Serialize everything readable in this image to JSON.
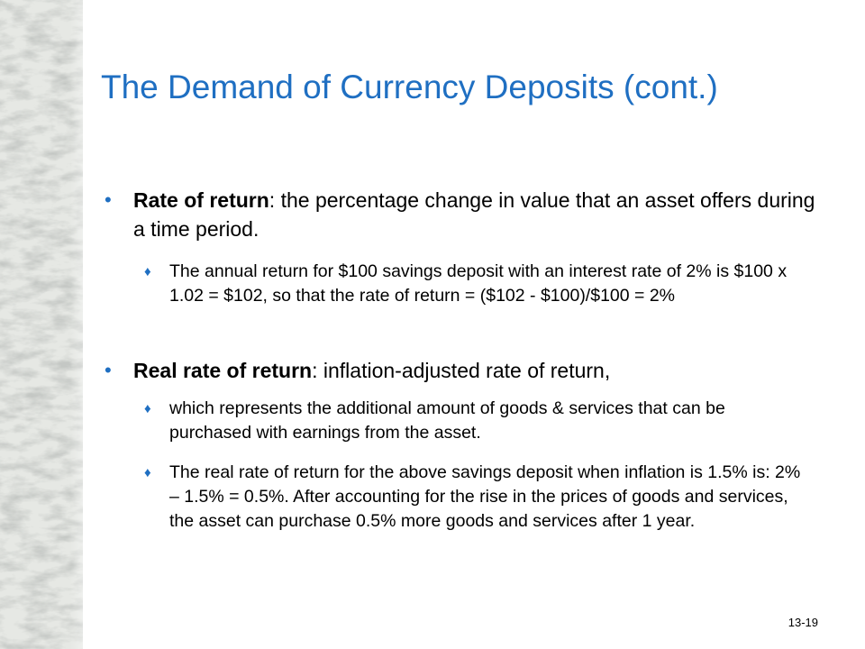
{
  "title": "The Demand of Currency Deposits (cont.)",
  "bullets": [
    {
      "term": "Rate of return",
      "text": ": the percentage change in value that an asset offers during a time period.",
      "subs": [
        "The annual return for $100 savings deposit with an interest rate of 2% is $100 x 1.02 = $102, so that the rate of return = ($102 - $100)/$100 = 2%"
      ]
    },
    {
      "term": "Real rate of return",
      "text": ": inflation-adjusted rate of return,",
      "subs": [
        "which represents the additional amount of goods & services that can be purchased with earnings from the asset.",
        "The real rate of return for the above savings deposit when inflation is 1.5% is:  2% – 1.5% = 0.5%.  After accounting for the rise in the prices of goods and services, the asset can purchase 0.5% more goods and services after 1 year."
      ]
    }
  ],
  "bullet_glyph": "•",
  "sub_bullet_glyph": "♦",
  "slide_number": "13-19",
  "colors": {
    "title": "#1f6fc2",
    "bullet": "#1f6fc2",
    "body_text": "#000000",
    "marble_base": "#d9dcd8"
  },
  "decoration": "marble-texture-strip"
}
